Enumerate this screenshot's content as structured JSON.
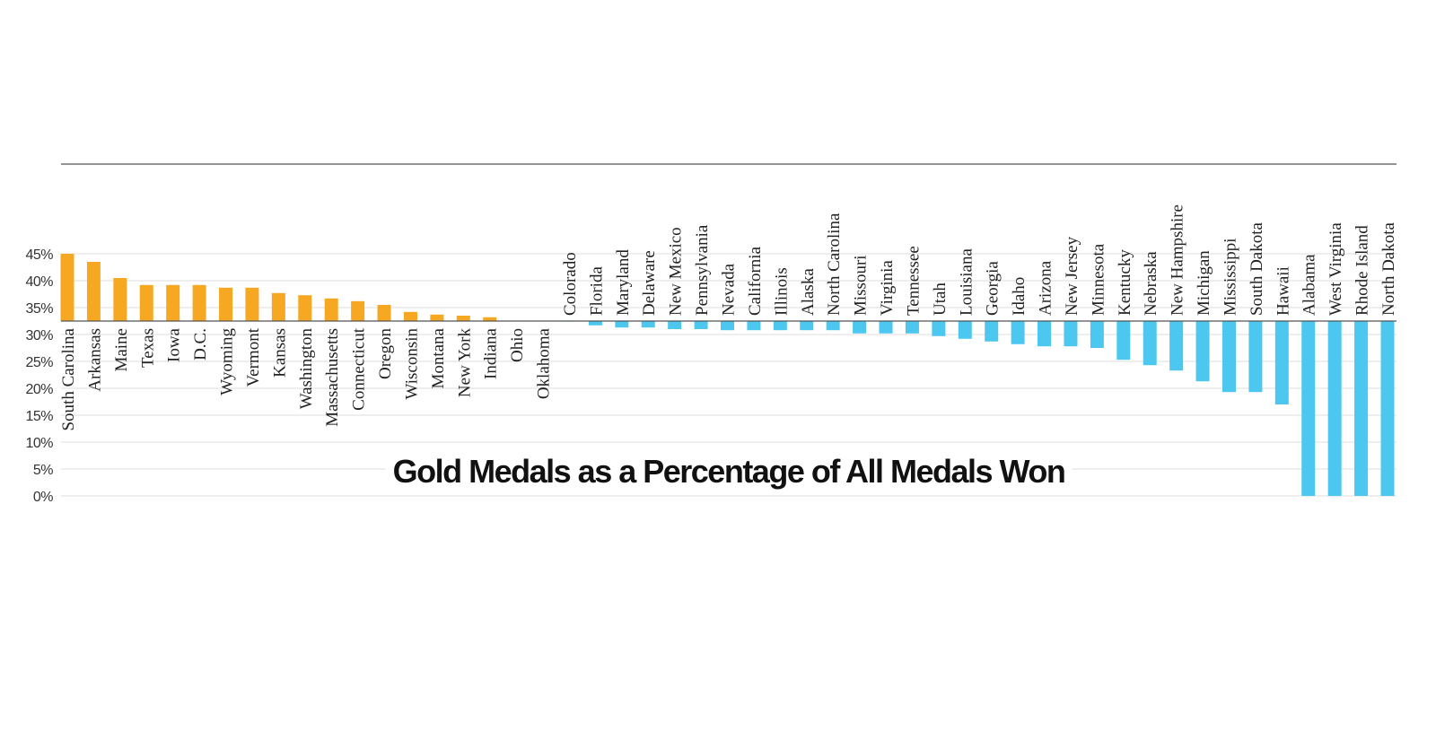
{
  "chart_data": {
    "type": "bar",
    "title": "Gold Medals as a Percentage of All Medals Won",
    "categories": [
      "South Carolina",
      "Arkansas",
      "Maine",
      "Texas",
      "Iowa",
      "D.C.",
      "Wyoming",
      "Vermont",
      "Kansas",
      "Washington",
      "Massachusetts",
      "Connecticut",
      "Oregon",
      "Wisconsin",
      "Montana",
      "New York",
      "Indiana",
      "Ohio",
      "Oklahoma",
      "Colorado",
      "Florida",
      "Maryland",
      "Delaware",
      "New Mexico",
      "Pennsylvania",
      "Nevada",
      "California",
      "Illinois",
      "Alaska",
      "North Carolina",
      "Missouri",
      "Virginia",
      "Tennessee",
      "Utah",
      "Louisiana",
      "Georgia",
      "Idaho",
      "Arizona",
      "New Jersey",
      "Minnesota",
      "Kentucky",
      "Nebraska",
      "New Hampshire",
      "Michigan",
      "Mississippi",
      "South Dakota",
      "Hawaii",
      "Alabama",
      "West Virginia",
      "Rhode Island",
      "North Dakota"
    ],
    "values": [
      45,
      43.5,
      40.5,
      39.2,
      39.2,
      39.2,
      38.7,
      38.7,
      37.7,
      37.3,
      36.7,
      36.2,
      35.5,
      34.2,
      33.7,
      33.5,
      33.2,
      32.5,
      32.5,
      32.4,
      31.7,
      31.3,
      31.3,
      31,
      31,
      30.8,
      30.8,
      30.8,
      30.8,
      30.8,
      30.2,
      30.2,
      30.2,
      29.7,
      29.2,
      28.7,
      28.2,
      27.8,
      27.8,
      27.5,
      25.3,
      24.3,
      23.3,
      21.3,
      19.3,
      19.3,
      17,
      0,
      0,
      0,
      0
    ],
    "baseline": 32.5,
    "colors": {
      "above": "#f7a823",
      "below": "#4cc8f0"
    },
    "ylim": [
      0,
      45
    ],
    "yticks": [
      {
        "value": 0,
        "label": "0%"
      },
      {
        "value": 5,
        "label": "5%"
      },
      {
        "value": 10,
        "label": "10%"
      },
      {
        "value": 15,
        "label": "15%"
      },
      {
        "value": 20,
        "label": "20%"
      },
      {
        "value": 25,
        "label": "25%"
      },
      {
        "value": 30,
        "label": "30%"
      },
      {
        "value": 35,
        "label": "35%"
      },
      {
        "value": 40,
        "label": "40%"
      },
      {
        "value": 45,
        "label": "45%"
      }
    ],
    "grid": true
  }
}
